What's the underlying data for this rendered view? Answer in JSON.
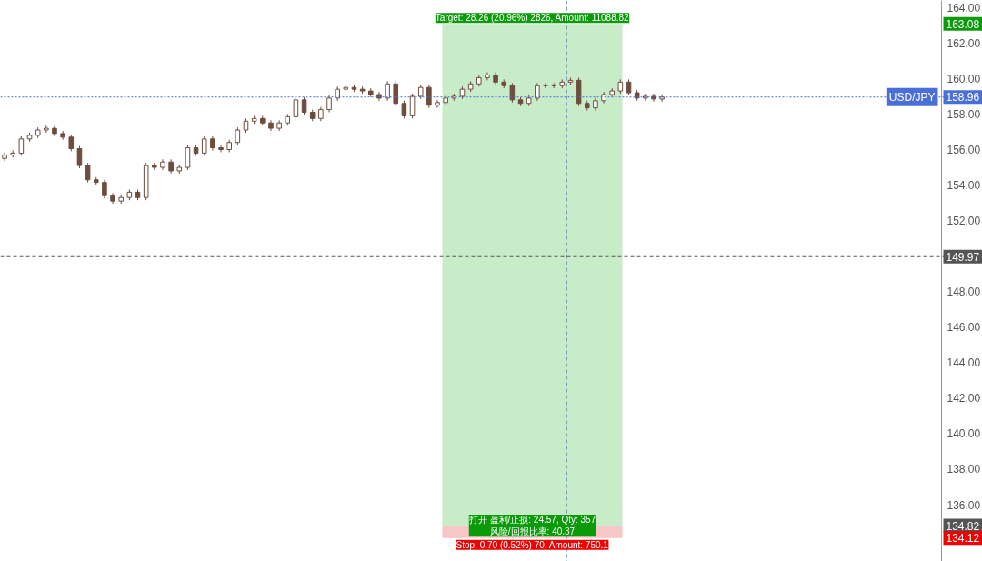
{
  "chart_data": {
    "type": "candlestick",
    "categories": [
      null,
      null,
      null,
      null,
      null,
      null,
      null,
      null,
      null,
      null,
      null,
      null,
      null,
      null,
      null,
      null,
      null,
      null,
      null,
      null,
      null,
      null,
      null,
      null,
      null,
      null,
      null,
      null,
      null,
      null,
      null,
      null,
      null,
      null,
      null,
      null,
      null,
      null,
      null,
      null,
      null,
      null,
      null,
      null,
      null,
      null,
      null,
      null,
      null,
      null,
      null,
      null,
      null,
      null,
      null,
      null,
      null,
      null,
      null,
      null,
      null,
      null,
      null,
      null,
      null,
      null,
      null,
      null,
      null,
      null,
      null,
      null,
      null,
      null,
      null,
      null,
      null,
      null,
      null,
      null,
      null,
      null,
      null,
      null,
      null,
      null,
      null,
      null,
      null,
      null,
      null,
      null,
      null,
      null,
      null,
      null,
      null,
      null,
      null,
      null,
      null,
      null,
      null,
      null,
      null,
      null,
      null,
      null,
      null,
      null,
      null,
      null,
      null,
      null,
      null,
      null,
      null,
      null
    ],
    "color": "#6e4c3e",
    "ohlc": [
      [
        155.5,
        155.85,
        155.35,
        155.7
      ],
      [
        155.7,
        155.95,
        155.55,
        155.8
      ],
      [
        155.8,
        156.75,
        155.65,
        156.6
      ],
      [
        156.6,
        156.95,
        156.45,
        156.8
      ],
      [
        156.8,
        157.25,
        156.65,
        157.1
      ],
      [
        157.1,
        157.35,
        156.95,
        157.2
      ],
      [
        157.2,
        157.35,
        156.75,
        156.9
      ],
      [
        156.9,
        157.05,
        156.55,
        156.7
      ],
      [
        156.7,
        156.85,
        155.9,
        156.05
      ],
      [
        156.05,
        156.2,
        154.95,
        155.1
      ],
      [
        155.1,
        155.25,
        154.15,
        154.3
      ],
      [
        154.3,
        154.45,
        154.0,
        154.15
      ],
      [
        154.15,
        154.3,
        153.25,
        153.4
      ],
      [
        153.4,
        153.55,
        152.95,
        153.1
      ],
      [
        153.1,
        153.45,
        152.95,
        153.3
      ],
      [
        153.3,
        153.75,
        153.15,
        153.6
      ],
      [
        153.6,
        153.75,
        153.15,
        153.3
      ],
      [
        153.3,
        155.25,
        153.15,
        155.1
      ],
      [
        155.1,
        155.25,
        154.85,
        155.0
      ],
      [
        155.0,
        155.45,
        154.85,
        155.3
      ],
      [
        155.3,
        155.45,
        154.65,
        154.8
      ],
      [
        154.8,
        155.15,
        154.65,
        155.0
      ],
      [
        155.0,
        156.25,
        154.85,
        156.1
      ],
      [
        156.1,
        156.25,
        155.65,
        155.8
      ],
      [
        155.8,
        156.75,
        155.65,
        156.6
      ],
      [
        156.6,
        156.75,
        155.95,
        156.1
      ],
      [
        156.1,
        156.25,
        155.85,
        156.0
      ],
      [
        156.0,
        156.55,
        155.85,
        156.4
      ],
      [
        156.4,
        157.25,
        156.25,
        157.1
      ],
      [
        157.1,
        157.75,
        156.95,
        157.6
      ],
      [
        157.6,
        157.9,
        157.45,
        157.75
      ],
      [
        157.75,
        157.9,
        157.35,
        157.5
      ],
      [
        157.5,
        157.65,
        157.05,
        157.2
      ],
      [
        157.2,
        157.65,
        157.05,
        157.5
      ],
      [
        157.5,
        158.0,
        157.35,
        157.85
      ],
      [
        157.85,
        158.95,
        157.7,
        158.8
      ],
      [
        158.8,
        158.95,
        157.95,
        158.1
      ],
      [
        158.1,
        158.25,
        157.6,
        157.75
      ],
      [
        157.75,
        158.4,
        157.6,
        158.25
      ],
      [
        158.25,
        159.05,
        158.1,
        158.9
      ],
      [
        158.9,
        159.55,
        158.75,
        159.4
      ],
      [
        159.4,
        159.65,
        159.25,
        159.5
      ],
      [
        159.5,
        159.65,
        159.25,
        159.4
      ],
      [
        159.4,
        159.55,
        159.15,
        159.3
      ],
      [
        159.3,
        159.45,
        158.95,
        159.1
      ],
      [
        159.1,
        159.25,
        158.75,
        158.9
      ],
      [
        158.9,
        159.85,
        158.75,
        159.7
      ],
      [
        159.7,
        159.85,
        158.45,
        158.6
      ],
      [
        158.6,
        158.75,
        157.75,
        157.9
      ],
      [
        157.9,
        159.15,
        157.75,
        159.0
      ],
      [
        159.0,
        159.65,
        158.85,
        159.5
      ],
      [
        159.5,
        159.65,
        158.35,
        158.5
      ],
      [
        158.5,
        158.8,
        158.35,
        158.65
      ],
      [
        158.65,
        159.05,
        158.5,
        158.9
      ],
      [
        158.9,
        159.15,
        158.75,
        159.0
      ],
      [
        159.0,
        159.55,
        158.85,
        159.4
      ],
      [
        159.4,
        159.85,
        159.25,
        159.7
      ],
      [
        159.7,
        160.2,
        159.55,
        160.05
      ],
      [
        160.05,
        160.35,
        159.9,
        160.2
      ],
      [
        160.2,
        160.35,
        159.65,
        159.8
      ],
      [
        159.8,
        159.95,
        159.45,
        159.6
      ],
      [
        159.6,
        159.75,
        158.65,
        158.8
      ],
      [
        158.8,
        158.95,
        158.45,
        158.6
      ],
      [
        158.6,
        159.05,
        158.45,
        158.9
      ],
      [
        158.9,
        159.75,
        158.75,
        159.6
      ],
      [
        159.6,
        159.75,
        159.45,
        159.6
      ],
      [
        159.6,
        159.75,
        159.45,
        159.6
      ],
      [
        159.6,
        159.95,
        159.45,
        159.8
      ],
      [
        159.8,
        160.05,
        159.65,
        159.9
      ],
      [
        159.9,
        160.05,
        158.45,
        158.6
      ],
      [
        158.6,
        158.75,
        158.2,
        158.35
      ],
      [
        158.35,
        158.9,
        158.2,
        158.75
      ],
      [
        158.75,
        159.25,
        158.6,
        159.1
      ],
      [
        159.1,
        159.45,
        158.95,
        159.3
      ],
      [
        159.3,
        159.95,
        159.15,
        159.8
      ],
      [
        159.8,
        159.95,
        159.05,
        159.2
      ],
      [
        159.2,
        159.35,
        158.75,
        158.9
      ],
      [
        158.9,
        159.15,
        158.75,
        159.0
      ],
      [
        159.0,
        159.15,
        158.7,
        158.85
      ],
      [
        158.85,
        159.11,
        158.7,
        158.96
      ],
      null,
      null,
      null,
      null,
      null,
      null,
      null,
      null,
      null,
      null,
      null,
      null,
      null,
      null,
      null,
      null,
      null,
      null,
      null,
      null,
      null,
      null,
      null,
      null,
      null,
      null,
      null,
      null,
      null,
      null,
      null,
      null,
      null,
      null,
      null,
      null,
      null,
      null
    ],
    "ylim": [
      132.8,
      164.4
    ],
    "yticks": [
      {
        "value": 136,
        "label": "136.00"
      },
      {
        "value": 138,
        "label": "138.00"
      },
      {
        "value": 140,
        "label": "140.00"
      },
      {
        "value": 142,
        "label": "142.00"
      },
      {
        "value": 144,
        "label": "144.00"
      },
      {
        "value": 146,
        "label": "146.00"
      },
      {
        "value": 148,
        "label": "148.00"
      },
      {
        "value": 152,
        "label": "152.00"
      },
      {
        "value": 154,
        "label": "154.00"
      },
      {
        "value": 156,
        "label": "156.00"
      },
      {
        "value": 158,
        "label": "158.00"
      },
      {
        "value": 160,
        "label": "160.00"
      },
      {
        "value": 162,
        "label": "162.00"
      },
      {
        "value": 164,
        "label": "164.00"
      }
    ],
    "ref_lines": [
      {
        "axis": "y",
        "value": 158.96,
        "label": "USD/JPY",
        "color": "#4a6fd8",
        "line_style": "dotted"
      },
      {
        "axis": "y",
        "value": 149.97,
        "label": null,
        "color": "#555555",
        "line_style": "dashed"
      }
    ],
    "bands": [
      {
        "axis": "y",
        "from": 134.82,
        "to": 163.08,
        "label": null,
        "color": "#c8ebc8"
      },
      {
        "axis": "y",
        "from": 134.12,
        "to": 134.82,
        "label": null,
        "color": "#f8c6c6"
      }
    ],
    "annotations": [
      "Target: 28.26 (20.96%) 2826, Amount: 11088.82",
      "打开 盈利/止损: 24.57, Qty: 357\n风险/回报比率: 40.37",
      "Stop: 0.70 (0.52%) 70, Amount: 750.1",
      {
        "text": "163.08",
        "y": 163.08
      },
      {
        "text": "158.96",
        "y": 158.96
      },
      {
        "text": "149.97",
        "y": 149.97
      },
      {
        "text": "134.82",
        "y": 134.82
      },
      {
        "text": "134.12",
        "y": 134.12
      }
    ],
    "tick_labels": "y",
    "grid": false
  }
}
